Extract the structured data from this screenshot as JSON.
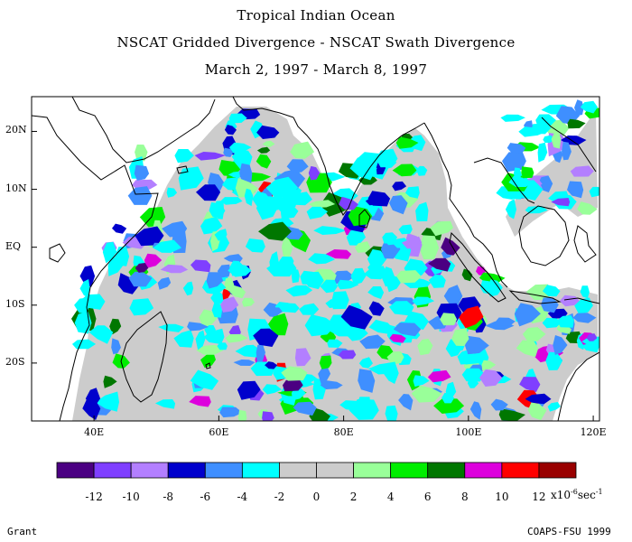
{
  "titles": {
    "line1": "Tropical Indian Ocean",
    "line2": "NSCAT Gridded Divergence - NSCAT Swath Divergence",
    "line3": "March 2, 1997 - March 8, 1997"
  },
  "map": {
    "lon_range": [
      30,
      121
    ],
    "lat_range": [
      -30,
      26
    ],
    "lat_ticks": [
      {
        "value": 20,
        "label": "20N"
      },
      {
        "value": 10,
        "label": "10N"
      },
      {
        "value": 0,
        "label": "EQ"
      },
      {
        "value": -10,
        "label": "10S"
      },
      {
        "value": -20,
        "label": "20S"
      }
    ],
    "lon_ticks": [
      {
        "value": 40,
        "label": "40E"
      },
      {
        "value": 60,
        "label": "60E"
      },
      {
        "value": 80,
        "label": "80E"
      },
      {
        "value": 100,
        "label": "100E"
      },
      {
        "value": 120,
        "label": "120E"
      }
    ],
    "background_field_color": "#cccccc"
  },
  "colorbar": {
    "colors": [
      "#4b0082",
      "#7f3fff",
      "#b37fff",
      "#0000cc",
      "#3f8fff",
      "#00ffff",
      "#cccccc",
      "#cccccc",
      "#99ff99",
      "#00ee00",
      "#007700",
      "#dd00dd",
      "#ff0000",
      "#990000"
    ],
    "labels": [
      "-12",
      "-10",
      "-8",
      "-6",
      "-4",
      "-2",
      "0",
      "2",
      "4",
      "6",
      "8",
      "10",
      "12"
    ],
    "units_prefix": "x10",
    "units_exponent": "-6",
    "units_suffix": "sec",
    "units_suffix_exponent": "-1"
  },
  "footer": {
    "left": "Grant",
    "right": "COAPS-FSU 1999"
  }
}
